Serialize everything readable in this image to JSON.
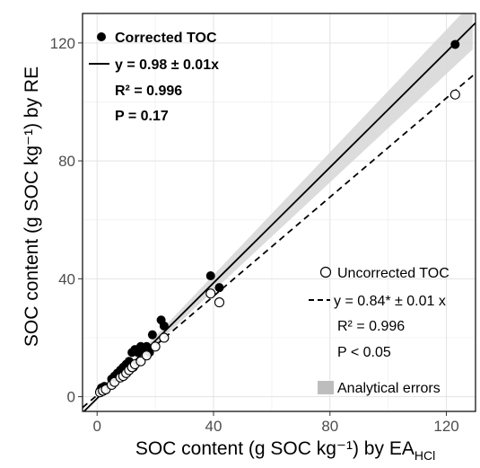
{
  "chart_data": {
    "type": "scatter",
    "xlabel": "SOC content (g SOC kg⁻¹) by EA",
    "xlabel_sub": "HCl",
    "ylabel": "SOC content (g SOC kg⁻¹) by RE",
    "xlim": [
      -5,
      130
    ],
    "ylim": [
      -5,
      130
    ],
    "xticks": [
      0,
      40,
      80,
      120
    ],
    "yticks": [
      0,
      40,
      80,
      120
    ],
    "grid": true,
    "legend_top_left": {
      "series_label": "Corrected TOC",
      "equation": "y = 0.98 ± 0.01x",
      "r2": "R² = 0.996",
      "p": "P = 0.17"
    },
    "legend_bottom_right": {
      "series_label": "Uncorrected TOC",
      "equation": "y = 0.84* ± 0.01 x",
      "r2": "R² = 0.996",
      "p": "P < 0.05",
      "error_label": "Analytical errors"
    },
    "corrected_fit": {
      "slope": 0.98,
      "intercept": -0.6
    },
    "uncorrected_fit": {
      "slope": 0.84,
      "intercept": 0.5
    },
    "series": [
      {
        "name": "Corrected TOC",
        "marker": "filled",
        "x": [
          1,
          1.5,
          2,
          2.5,
          3,
          5,
          6,
          7,
          8,
          9,
          10,
          11,
          12,
          12.5,
          13,
          14,
          15,
          16,
          17,
          18,
          19,
          22,
          23,
          39,
          42,
          123
        ],
        "y": [
          2,
          3,
          2.5,
          3.5,
          3,
          6,
          7,
          8,
          9,
          10,
          11,
          12,
          15,
          10,
          16,
          15,
          17,
          16,
          17,
          15,
          21,
          26,
          24,
          41,
          37,
          119.5
        ]
      },
      {
        "name": "Uncorrected TOC",
        "marker": "open",
        "x": [
          1,
          2,
          3,
          5,
          6,
          8,
          9,
          10,
          11,
          12,
          13,
          15,
          17,
          20,
          23,
          39,
          42,
          123
        ],
        "y": [
          1.5,
          2,
          2.5,
          4,
          5,
          6.5,
          7,
          8,
          9,
          10,
          11,
          12,
          14,
          17,
          20,
          35,
          32,
          102.5
        ]
      }
    ]
  }
}
